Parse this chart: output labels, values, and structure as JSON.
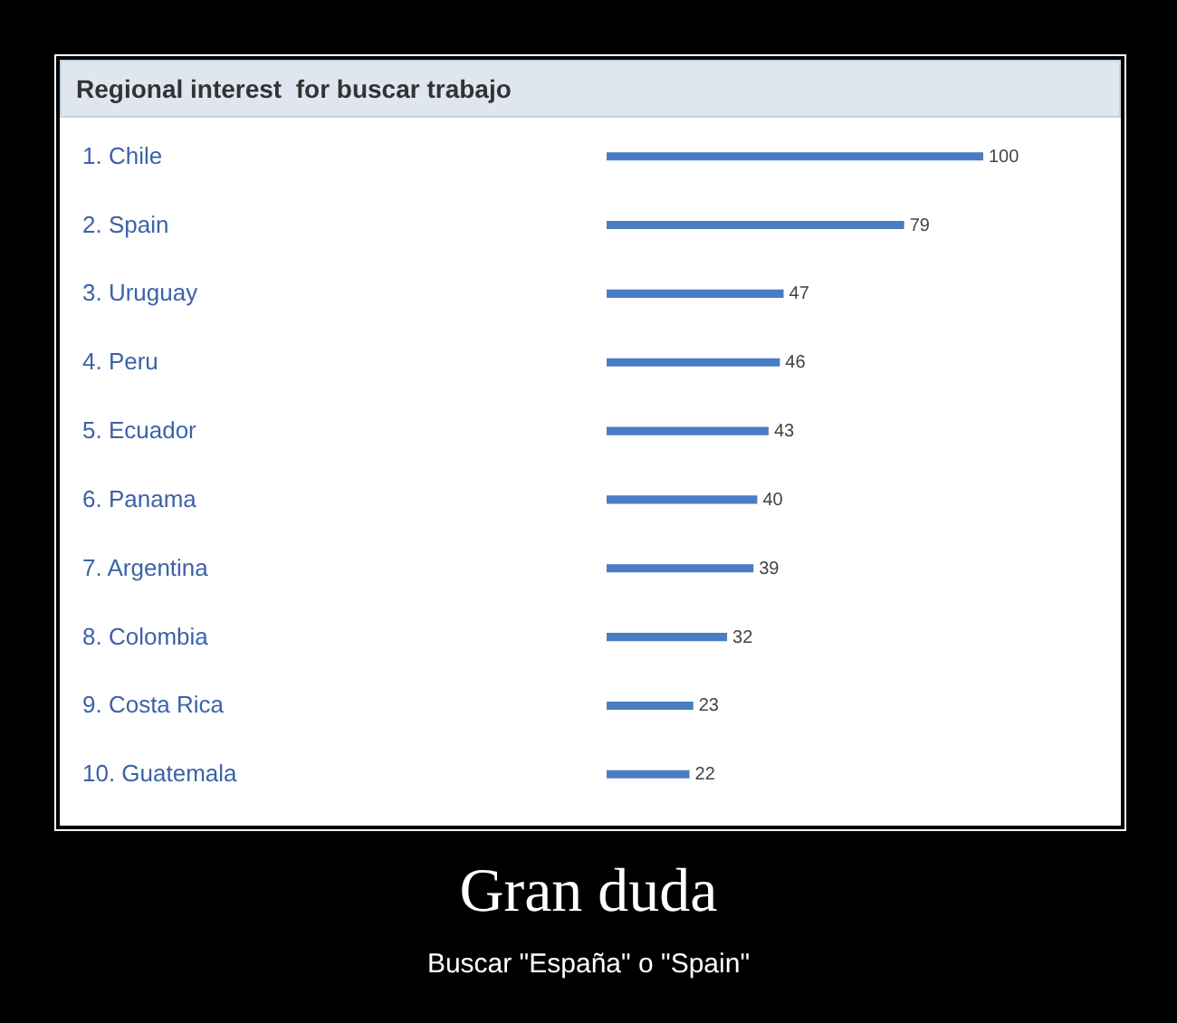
{
  "chart_data": {
    "type": "bar",
    "orientation": "horizontal",
    "title": "Regional interest  for buscar trabajo",
    "categories": [
      "1. Chile",
      "2. Spain",
      "3. Uruguay",
      "4. Peru",
      "5. Ecuador",
      "6. Panama",
      "7. Argentina",
      "8. Colombia",
      "9. Costa Rica",
      "10. Guatemala"
    ],
    "values": [
      100,
      79,
      47,
      46,
      43,
      40,
      39,
      32,
      23,
      22
    ],
    "color": "#4a7cc4",
    "data_labels": true,
    "annotations": [
      "Gran duda",
      "Buscar \"España\" o \"Spain\""
    ]
  }
}
